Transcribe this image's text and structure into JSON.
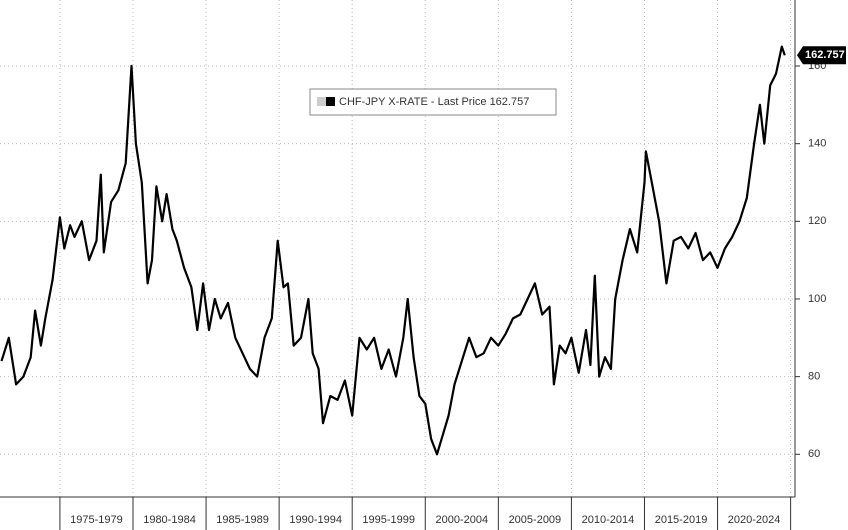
{
  "chart_data": {
    "type": "line",
    "series": [
      {
        "name": "CHF-JPY X-RATE - Last Price 162.757",
        "color": "#000000",
        "x": [
          1971,
          1971.5,
          1972,
          1972.5,
          1973,
          1973.3,
          1973.7,
          1974,
          1974.5,
          1975,
          1975.3,
          1975.7,
          1976,
          1976.5,
          1977,
          1977.5,
          1977.8,
          1978,
          1978.5,
          1979,
          1979.5,
          1979.9,
          1980.2,
          1980.6,
          1981,
          1981.3,
          1981.6,
          1982,
          1982.3,
          1982.7,
          1983,
          1983.5,
          1984,
          1984.4,
          1984.8,
          1985.2,
          1985.6,
          1986,
          1986.5,
          1987,
          1987.5,
          1988,
          1988.5,
          1989,
          1989.5,
          1989.9,
          1990.3,
          1990.6,
          1991,
          1991.5,
          1992,
          1992.3,
          1992.7,
          1993,
          1993.5,
          1994,
          1994.5,
          1995,
          1995.5,
          1996,
          1996.5,
          1997,
          1997.5,
          1998,
          1998.5,
          1998.8,
          1999.2,
          1999.6,
          2000,
          2000.4,
          2000.8,
          2001.2,
          2001.6,
          2002,
          2002.5,
          2003,
          2003.5,
          2004,
          2004.5,
          2005,
          2005.5,
          2006,
          2006.5,
          2007,
          2007.5,
          2008,
          2008.5,
          2008.8,
          2009.2,
          2009.6,
          2010,
          2010.5,
          2011,
          2011.3,
          2011.6,
          2011.9,
          2012.3,
          2012.7,
          2013,
          2013.5,
          2014,
          2014.5,
          2015,
          2015.1,
          2015.5,
          2016,
          2016.5,
          2017,
          2017.5,
          2018,
          2018.5,
          2019,
          2019.5,
          2020,
          2020.5,
          2021,
          2021.5,
          2022,
          2022.5,
          2022.9,
          2023.2,
          2023.6,
          2024,
          2024.4,
          2024.6
        ],
        "values": [
          84,
          90,
          78,
          80,
          85,
          97,
          88,
          95,
          105,
          121,
          113,
          119,
          116,
          120,
          110,
          115,
          132,
          112,
          125,
          128,
          135,
          160,
          140,
          130,
          104,
          110,
          129,
          120,
          127,
          118,
          115,
          108,
          103,
          92,
          104,
          92,
          100,
          95,
          99,
          90,
          86,
          82,
          80,
          90,
          95,
          115,
          103,
          104,
          88,
          90,
          100,
          86,
          82,
          68,
          75,
          74,
          79,
          70,
          90,
          87,
          90,
          82,
          87,
          80,
          90,
          100,
          85,
          75,
          73,
          64,
          60,
          65,
          70,
          78,
          84,
          90,
          85,
          86,
          90,
          88,
          91,
          95,
          96,
          100,
          104,
          96,
          98,
          78,
          88,
          86,
          90,
          81,
          92,
          83,
          106,
          80,
          85,
          82,
          100,
          110,
          118,
          112,
          130,
          138,
          130,
          120,
          104,
          115,
          116,
          113,
          117,
          110,
          112,
          108,
          113,
          116,
          120,
          126,
          140,
          150,
          140,
          155,
          158,
          165,
          162.757
        ]
      }
    ],
    "xlim": [
      1970.9,
      2025.3
    ],
    "xgrid": [
      1975,
      1980,
      1985,
      1990,
      1995,
      2000,
      2005,
      2010,
      2015,
      2020,
      2025
    ],
    "xticks": [
      {
        "value": 1977.5,
        "label": "1975-1979"
      },
      {
        "value": 1982.5,
        "label": "1980-1984"
      },
      {
        "value": 1987.5,
        "label": "1985-1989"
      },
      {
        "value": 1992.5,
        "label": "1990-1994"
      },
      {
        "value": 1997.5,
        "label": "1995-1999"
      },
      {
        "value": 2002.5,
        "label": "2000-2004"
      },
      {
        "value": 2007.5,
        "label": "2005-2009"
      },
      {
        "value": 2012.5,
        "label": "2010-2014"
      },
      {
        "value": 2017.5,
        "label": "2015-2019"
      },
      {
        "value": 2022.5,
        "label": "2020-2024"
      }
    ],
    "ylim": [
      49,
      177
    ],
    "yticks": [
      60,
      80,
      100,
      120,
      140,
      160
    ],
    "grid": true
  }
}
